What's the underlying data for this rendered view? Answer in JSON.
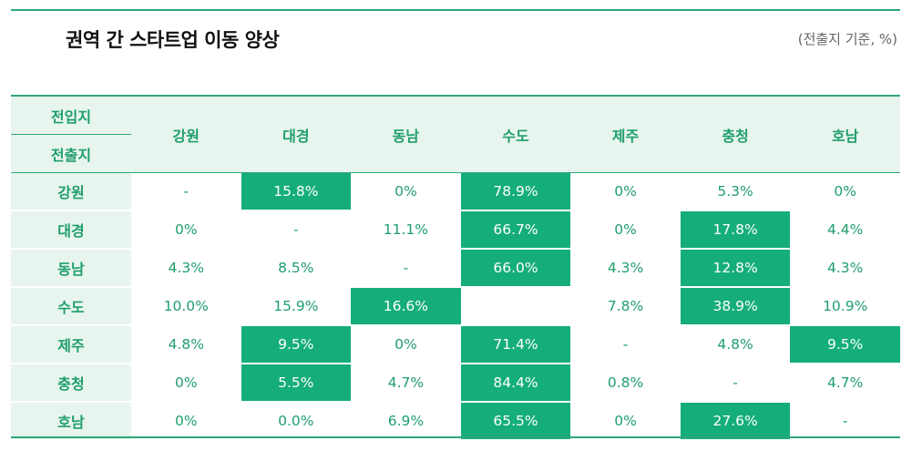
{
  "title": "권역 간 스타트업 이동 양상",
  "unit": "(전출지 기준, %)",
  "header": {
    "dest_label": "전입지",
    "origin_label": "전출지",
    "columns": [
      "강원",
      "대경",
      "동남",
      "수도",
      "제주",
      "충청",
      "호남"
    ]
  },
  "colors": {
    "accent": "#1f9e6d",
    "highlight": "#15ad7c",
    "header_bg": "#e8f5ef"
  },
  "rows": [
    {
      "origin": "강원",
      "values": [
        "-",
        "15.8%",
        "0%",
        "78.9%",
        "0%",
        "5.3%",
        "0%"
      ],
      "highlight": [
        false,
        true,
        false,
        true,
        false,
        false,
        false
      ]
    },
    {
      "origin": "대경",
      "values": [
        "0%",
        "-",
        "11.1%",
        "66.7%",
        "0%",
        "17.8%",
        "4.4%"
      ],
      "highlight": [
        false,
        false,
        false,
        true,
        false,
        true,
        false
      ]
    },
    {
      "origin": "동남",
      "values": [
        "4.3%",
        "8.5%",
        "-",
        "66.0%",
        "4.3%",
        "12.8%",
        "4.3%"
      ],
      "highlight": [
        false,
        false,
        false,
        true,
        false,
        true,
        false
      ]
    },
    {
      "origin": "수도",
      "values": [
        "10.0%",
        "15.9%",
        "16.6%",
        "",
        "7.8%",
        "38.9%",
        "10.9%"
      ],
      "highlight": [
        false,
        false,
        true,
        false,
        false,
        true,
        false
      ]
    },
    {
      "origin": "제주",
      "values": [
        "4.8%",
        "9.5%",
        "0%",
        "71.4%",
        "-",
        "4.8%",
        "9.5%"
      ],
      "highlight": [
        false,
        true,
        false,
        true,
        false,
        false,
        true
      ]
    },
    {
      "origin": "충청",
      "values": [
        "0%",
        "5.5%",
        "4.7%",
        "84.4%",
        "0.8%",
        "-",
        "4.7%"
      ],
      "highlight": [
        false,
        true,
        false,
        true,
        false,
        false,
        false
      ]
    },
    {
      "origin": "호남",
      "values": [
        "0%",
        "0.0%",
        "6.9%",
        "65.5%",
        "0%",
        "27.6%",
        "-"
      ],
      "highlight": [
        false,
        false,
        false,
        true,
        false,
        true,
        false
      ]
    }
  ]
}
